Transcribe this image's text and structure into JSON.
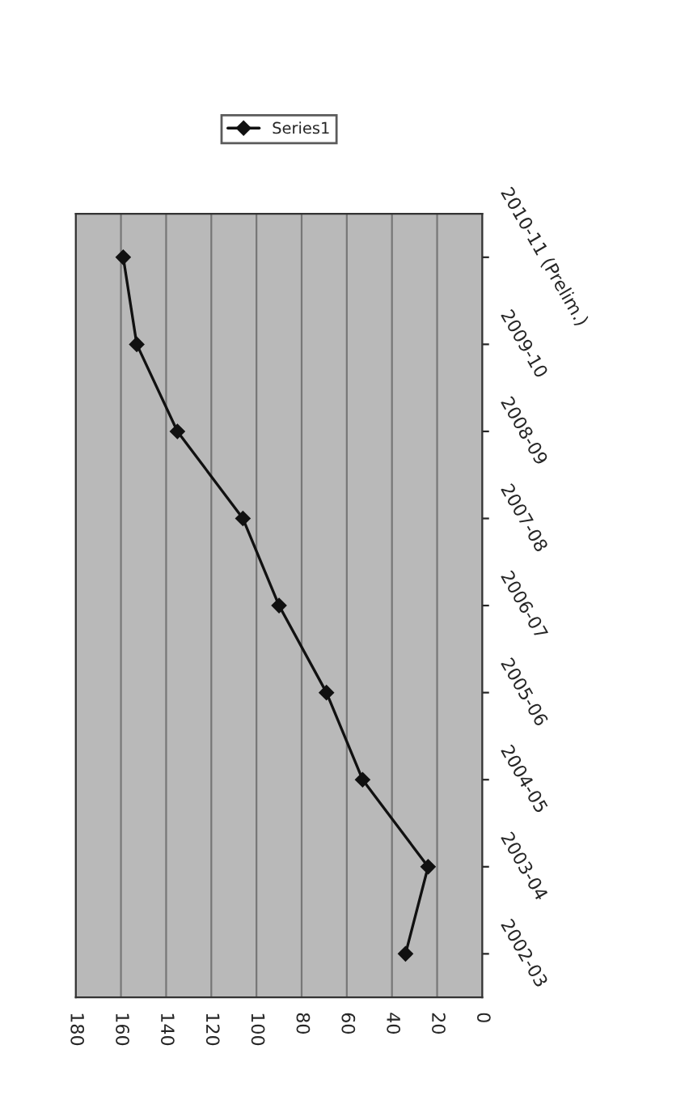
{
  "chart_data": {
    "type": "line",
    "orientation": "horizontal",
    "categories": [
      "2010-11 (Prelim.)",
      "2009-10",
      "2008-09",
      "2007-08",
      "2006-07",
      "2005-06",
      "2004-05",
      "2003-04",
      "2002-03"
    ],
    "series": [
      {
        "name": "Series1",
        "color": "#111111",
        "values": [
          159,
          153,
          135,
          106,
          90,
          69,
          53,
          24,
          34
        ]
      }
    ],
    "xlim": [
      180,
      0
    ],
    "xticks": [
      180,
      160,
      140,
      120,
      100,
      80,
      60,
      40,
      20,
      0
    ],
    "grid": "x",
    "legend": "top",
    "marker": "diamond",
    "line_style": "solid"
  }
}
